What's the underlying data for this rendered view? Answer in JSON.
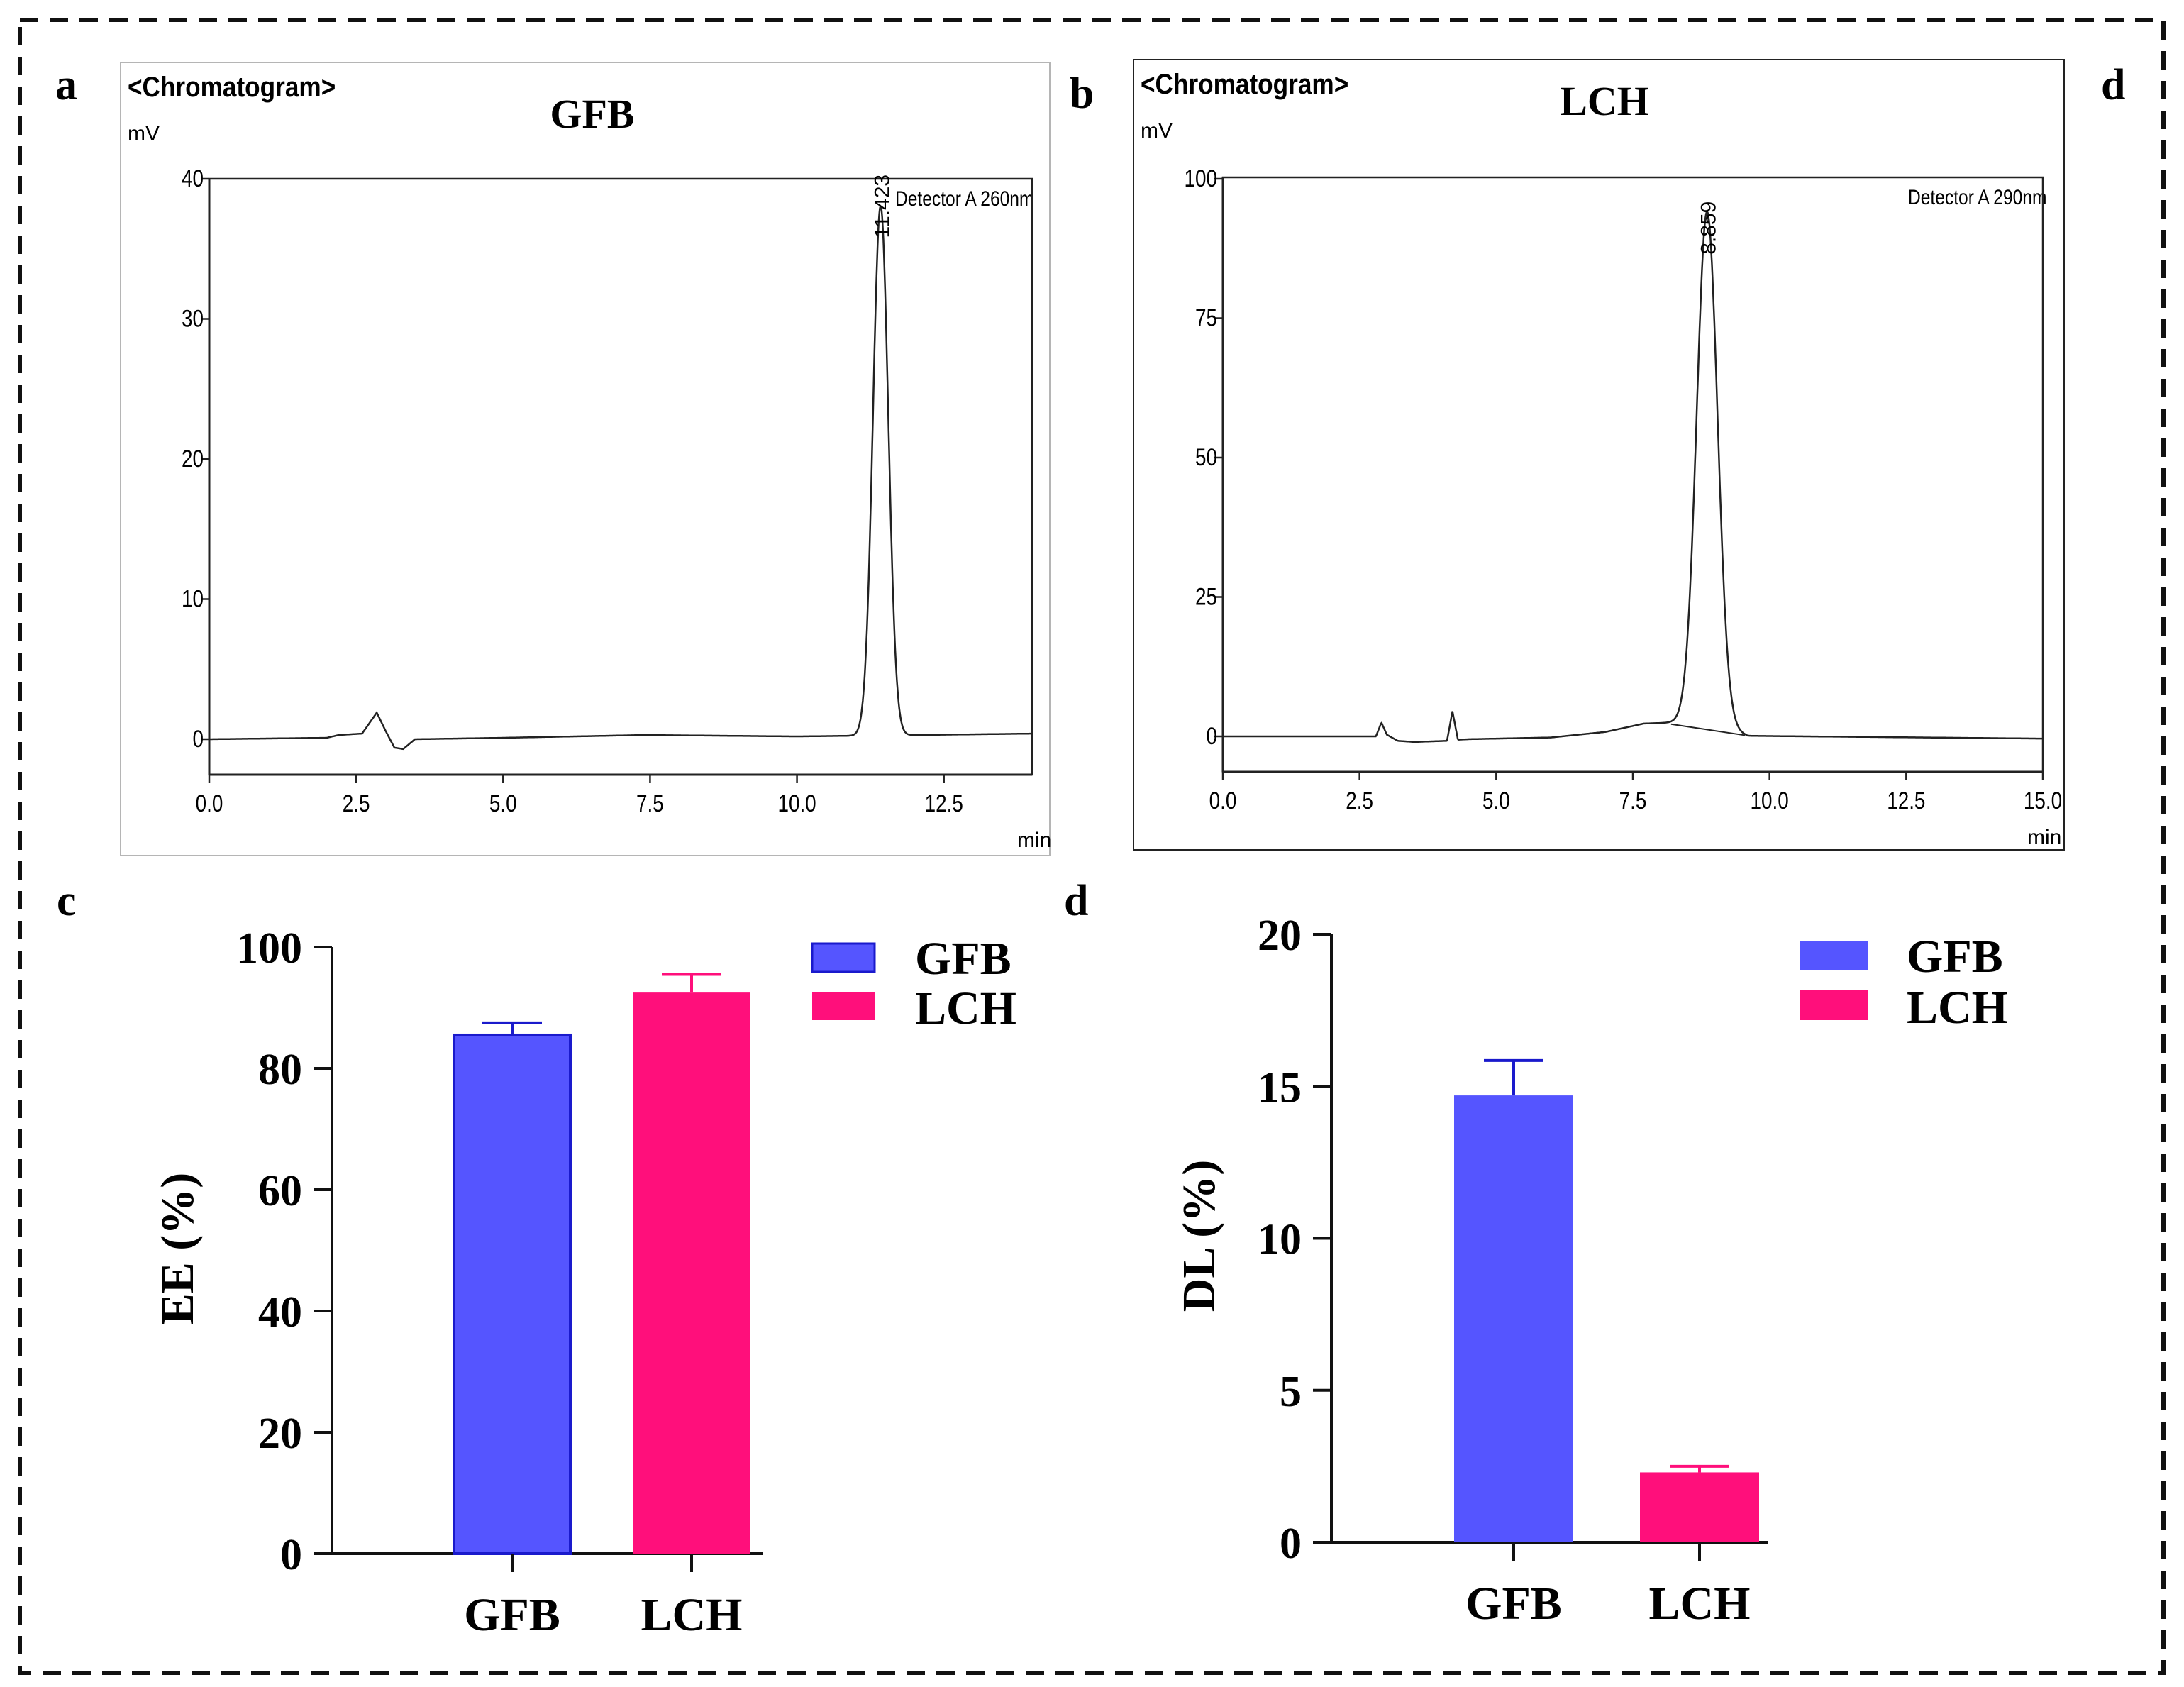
{
  "panel_labels": {
    "a": "a",
    "b": "b",
    "c": "c",
    "d_top": "d",
    "d_bottom": "d"
  },
  "chart_data": [
    {
      "id": "a",
      "type": "line",
      "header": "<Chromatogram>",
      "title": "GFB",
      "ylabel": "mV",
      "xlabel": "min",
      "detector": "Detector A 260nm",
      "xlim": [
        0,
        14
      ],
      "ylim": [
        -2,
        40
      ],
      "xticks": [
        "0.0",
        "2.5",
        "5.0",
        "7.5",
        "10.0",
        "12.5"
      ],
      "xtick_values": [
        0,
        2.5,
        5,
        7.5,
        10,
        12.5
      ],
      "yticks": [
        "0",
        "10",
        "20",
        "30",
        "40"
      ],
      "ytick_values": [
        0,
        10,
        20,
        30,
        40
      ],
      "peak_label": "11.423",
      "peak_rt": 11.423,
      "peak_height": 37.8,
      "peak_sigma": 0.13,
      "baseline": {
        "x": [
          0,
          2.0,
          2.2,
          2.6,
          2.85,
          3.0,
          3.15,
          3.3,
          3.5,
          5.0,
          7.4,
          10.0,
          11.0,
          14.0
        ],
        "y": [
          0.0,
          0.1,
          0.3,
          0.4,
          1.9,
          0.6,
          -0.6,
          -0.7,
          0.0,
          0.1,
          0.3,
          0.2,
          0.25,
          0.4
        ]
      }
    },
    {
      "id": "b",
      "type": "line",
      "header": "<Chromatogram>",
      "title": "LCH",
      "ylabel": "mV",
      "xlabel": "min",
      "detector": "Detector A 290nm",
      "xlim": [
        0,
        15
      ],
      "ylim": [
        -6,
        100
      ],
      "xticks": [
        "0.0",
        "2.5",
        "5.0",
        "7.5",
        "10.0",
        "12.5",
        "15.0"
      ],
      "xtick_values": [
        0,
        2.5,
        5,
        7.5,
        10,
        12.5,
        15
      ],
      "yticks": [
        "0",
        "25",
        "50",
        "75",
        "100"
      ],
      "ytick_values": [
        0,
        25,
        50,
        75,
        100
      ],
      "peak_label": "8.859",
      "peak_rt": 8.859,
      "peak_height": 91.5,
      "peak_sigma": 0.19,
      "baseline": {
        "x": [
          0,
          2.8,
          2.9,
          3.0,
          3.2,
          3.5,
          4.1,
          4.2,
          4.3,
          4.5,
          6.0,
          7.0,
          7.7,
          8.3,
          8.8,
          9.3,
          9.6,
          15.0
        ],
        "y": [
          0.0,
          0.0,
          2.5,
          0.3,
          -0.8,
          -1.0,
          -0.8,
          4.5,
          -0.6,
          -0.5,
          -0.2,
          0.8,
          2.3,
          2.5,
          2.8,
          1.2,
          0.1,
          -0.4
        ]
      }
    },
    {
      "id": "c",
      "type": "bar",
      "categories": [
        "GFB",
        "LCH"
      ],
      "values": [
        85.5,
        92.5
      ],
      "errors": [
        2.0,
        3.0
      ],
      "ylabel": "EE (%)",
      "ylim": [
        0,
        100
      ],
      "yticks": [
        "0",
        "20",
        "40",
        "60",
        "80",
        "100"
      ],
      "ytick_values": [
        0,
        20,
        40,
        60,
        80,
        100
      ],
      "legend": [
        "GFB",
        "LCH"
      ],
      "colors": [
        "#5555ff",
        "#ff0f7b"
      ],
      "edge_color": "#1a1acc"
    },
    {
      "id": "d",
      "type": "bar",
      "categories": [
        "GFB",
        "LCH"
      ],
      "values": [
        14.7,
        2.3
      ],
      "errors": [
        1.15,
        0.2
      ],
      "ylabel": "DL (%)",
      "ylim": [
        0,
        20
      ],
      "yticks": [
        "0",
        "5",
        "10",
        "15",
        "20"
      ],
      "ytick_values": [
        0,
        5,
        10,
        15,
        20
      ],
      "legend": [
        "GFB",
        "LCH"
      ],
      "colors": [
        "#5555ff",
        "#ff0f7b"
      ]
    }
  ]
}
